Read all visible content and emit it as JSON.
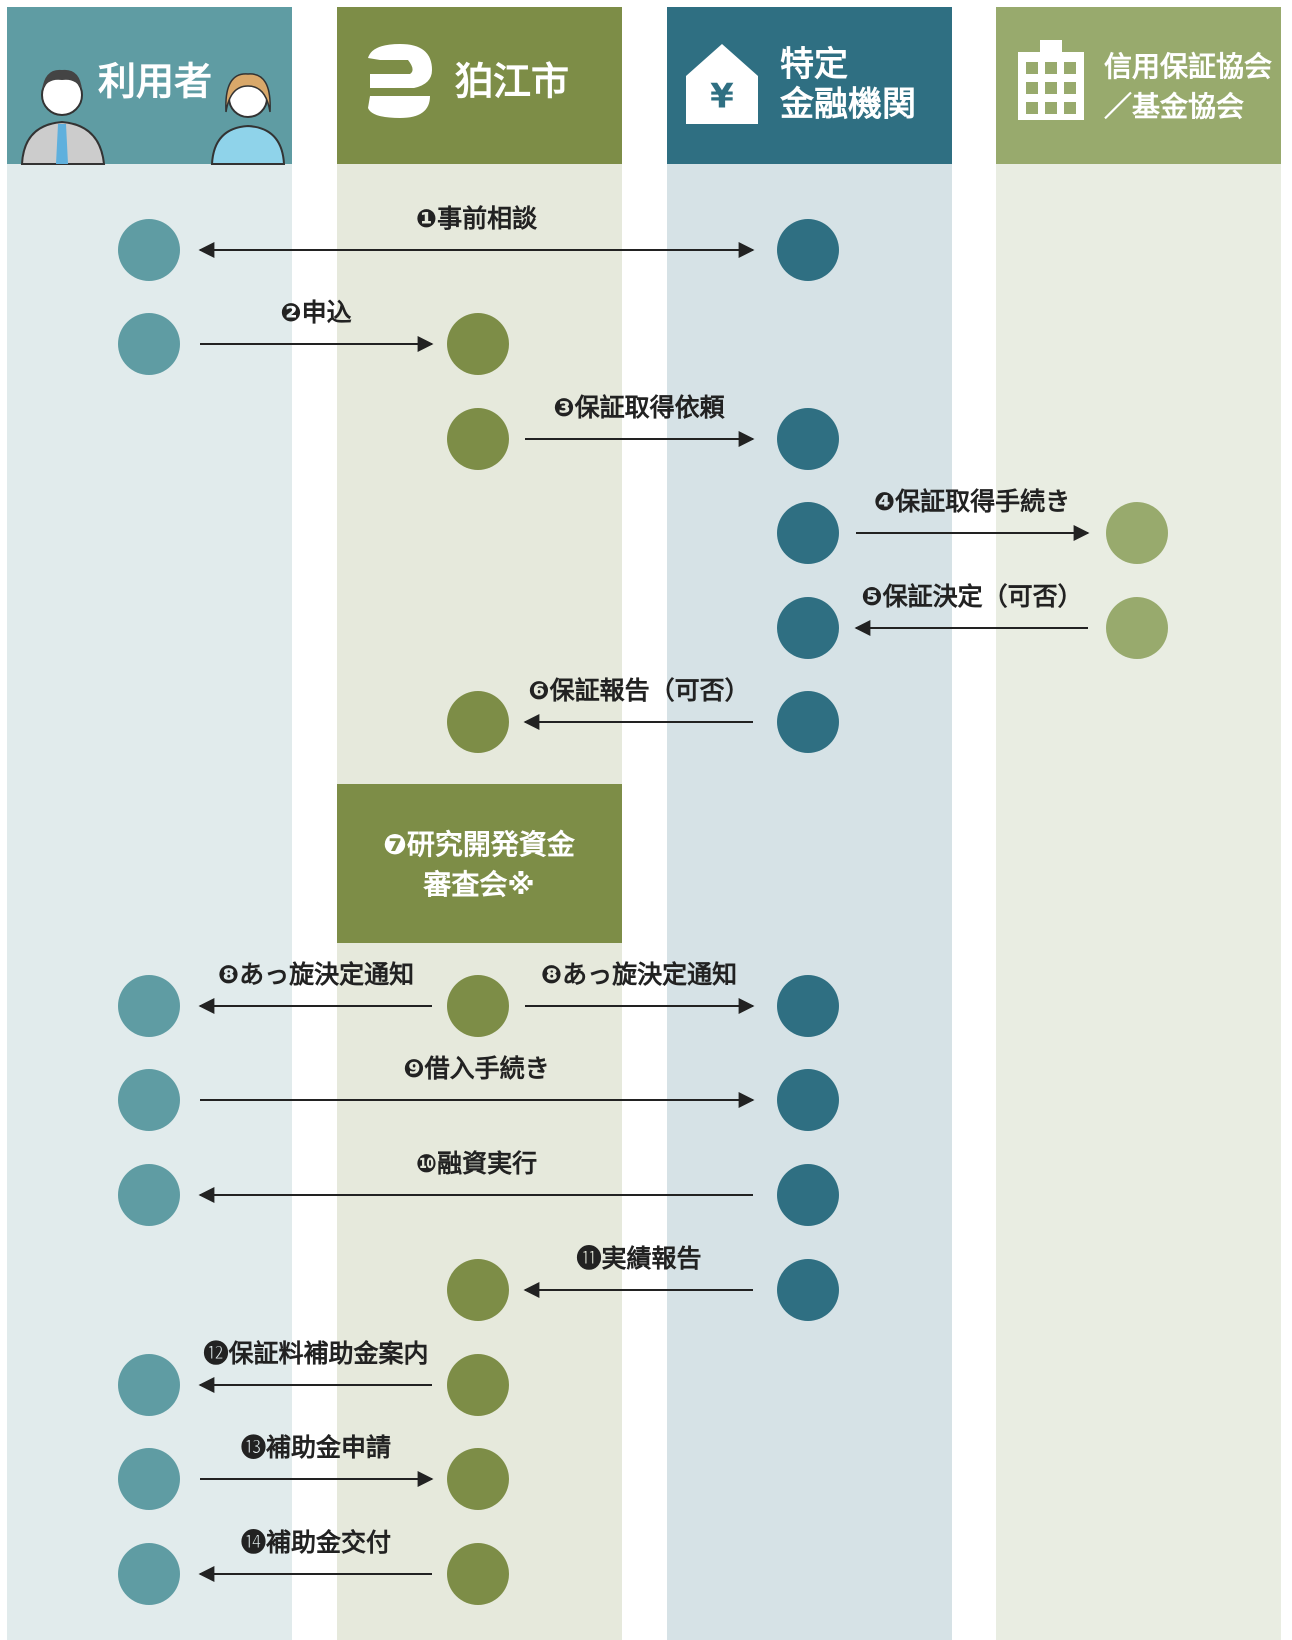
{
  "lanes": [
    {
      "label": [
        "利用者"
      ]
    },
    {
      "label": [
        "狛江市"
      ]
    },
    {
      "label": [
        "特定",
        "金融機関"
      ]
    },
    {
      "label": [
        "信用保証協会",
        "／基金協会"
      ]
    }
  ],
  "steps": [
    {
      "label": "❶事前相談"
    },
    {
      "label": "❷申込"
    },
    {
      "label": "❸保証取得依頼"
    },
    {
      "label": "❹保証取得手続き"
    },
    {
      "label": "❺保証決定（可否）"
    },
    {
      "label": "❻保証報告（可否）"
    },
    {
      "label": [
        "❼研究開発資金",
        "審査会※"
      ]
    },
    {
      "label": [
        "❽あっ旋決定通知",
        "❽あっ旋決定通知"
      ]
    },
    {
      "label": "❾借入手続き"
    },
    {
      "label": "❿融資実行"
    },
    {
      "label": "⓫実績報告"
    },
    {
      "label": "⓬保証料補助金案内"
    },
    {
      "label": "⓭補助金申請"
    },
    {
      "label": "⓮補助金交付"
    }
  ]
}
